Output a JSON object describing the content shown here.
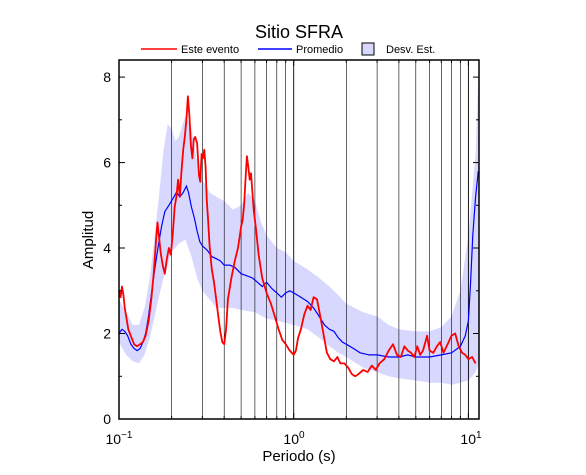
{
  "chart_data": {
    "type": "line",
    "title": "Sitio SFRA",
    "xlabel": "Periodo (s)",
    "ylabel": "Amplitud",
    "xscale": "log",
    "xlim": [
      0.1,
      11.5
    ],
    "ylim": [
      0,
      8.4
    ],
    "grid": "vertical log grid lines",
    "legend_placement": "top",
    "x_ticks": [
      {
        "value": 0.1,
        "base": "10",
        "exp": "−1"
      },
      {
        "value": 1,
        "label": "10",
        "exp": "0"
      },
      {
        "value": 10,
        "label": "10",
        "exp": "1"
      }
    ],
    "y_ticks": [
      "0",
      "2",
      "4",
      "6",
      "8"
    ],
    "legend": [
      {
        "label": "Este evento",
        "kind": "line",
        "color": "#ff0000"
      },
      {
        "label": "Promedio",
        "kind": "line",
        "color": "#0000ff"
      },
      {
        "label": "Desv. Est.",
        "kind": "box",
        "color": "#d8d8ff"
      }
    ],
    "series": [
      {
        "name": "Este evento",
        "color": "#ff0000",
        "points": [
          [
            0.1,
            3.0
          ],
          [
            0.102,
            2.85
          ],
          [
            0.104,
            3.1
          ],
          [
            0.106,
            2.9
          ],
          [
            0.108,
            2.6
          ],
          [
            0.113,
            2.1
          ],
          [
            0.118,
            1.9
          ],
          [
            0.122,
            1.75
          ],
          [
            0.127,
            1.7
          ],
          [
            0.132,
            1.75
          ],
          [
            0.137,
            1.8
          ],
          [
            0.142,
            1.95
          ],
          [
            0.148,
            2.3
          ],
          [
            0.153,
            2.8
          ],
          [
            0.158,
            3.4
          ],
          [
            0.163,
            4.2
          ],
          [
            0.166,
            4.6
          ],
          [
            0.17,
            4.2
          ],
          [
            0.173,
            3.9
          ],
          [
            0.178,
            3.6
          ],
          [
            0.183,
            3.4
          ],
          [
            0.188,
            3.75
          ],
          [
            0.193,
            4.0
          ],
          [
            0.198,
            3.85
          ],
          [
            0.203,
            4.3
          ],
          [
            0.208,
            4.95
          ],
          [
            0.213,
            5.2
          ],
          [
            0.218,
            5.6
          ],
          [
            0.223,
            5.2
          ],
          [
            0.228,
            5.8
          ],
          [
            0.233,
            6.3
          ],
          [
            0.238,
            6.6
          ],
          [
            0.243,
            7.0
          ],
          [
            0.248,
            7.55
          ],
          [
            0.253,
            7.1
          ],
          [
            0.258,
            6.4
          ],
          [
            0.263,
            6.1
          ],
          [
            0.268,
            6.55
          ],
          [
            0.273,
            6.6
          ],
          [
            0.28,
            6.45
          ],
          [
            0.287,
            5.7
          ],
          [
            0.292,
            5.55
          ],
          [
            0.297,
            6.2
          ],
          [
            0.302,
            6.1
          ],
          [
            0.308,
            6.3
          ],
          [
            0.313,
            5.9
          ],
          [
            0.318,
            5.1
          ],
          [
            0.323,
            4.7
          ],
          [
            0.33,
            4.05
          ],
          [
            0.34,
            3.5
          ],
          [
            0.35,
            3.2
          ],
          [
            0.36,
            2.8
          ],
          [
            0.37,
            2.4
          ],
          [
            0.38,
            2.05
          ],
          [
            0.39,
            1.8
          ],
          [
            0.4,
            1.75
          ],
          [
            0.41,
            2.1
          ],
          [
            0.42,
            2.8
          ],
          [
            0.44,
            3.3
          ],
          [
            0.46,
            3.7
          ],
          [
            0.48,
            4.0
          ],
          [
            0.5,
            4.5
          ],
          [
            0.51,
            4.65
          ],
          [
            0.52,
            5.0
          ],
          [
            0.53,
            5.6
          ],
          [
            0.54,
            6.15
          ],
          [
            0.55,
            5.9
          ],
          [
            0.56,
            5.6
          ],
          [
            0.57,
            5.75
          ],
          [
            0.59,
            4.9
          ],
          [
            0.61,
            4.4
          ],
          [
            0.63,
            3.85
          ],
          [
            0.66,
            3.3
          ],
          [
            0.7,
            2.95
          ],
          [
            0.74,
            2.7
          ],
          [
            0.78,
            2.4
          ],
          [
            0.82,
            2.1
          ],
          [
            0.86,
            1.85
          ],
          [
            0.9,
            1.75
          ],
          [
            0.95,
            1.6
          ],
          [
            1.0,
            1.5
          ],
          [
            1.03,
            1.6
          ],
          [
            1.06,
            1.9
          ],
          [
            1.1,
            2.1
          ],
          [
            1.15,
            2.45
          ],
          [
            1.2,
            2.65
          ],
          [
            1.25,
            2.55
          ],
          [
            1.3,
            2.85
          ],
          [
            1.36,
            2.8
          ],
          [
            1.42,
            2.4
          ],
          [
            1.48,
            2.0
          ],
          [
            1.55,
            1.55
          ],
          [
            1.62,
            1.4
          ],
          [
            1.7,
            1.35
          ],
          [
            1.78,
            1.45
          ],
          [
            1.85,
            1.3
          ],
          [
            1.95,
            1.3
          ],
          [
            2.05,
            1.2
          ],
          [
            2.15,
            1.05
          ],
          [
            2.25,
            1.0
          ],
          [
            2.35,
            1.05
          ],
          [
            2.5,
            1.15
          ],
          [
            2.65,
            1.1
          ],
          [
            2.8,
            1.25
          ],
          [
            2.95,
            1.15
          ],
          [
            3.1,
            1.3
          ],
          [
            3.3,
            1.4
          ],
          [
            3.5,
            1.6
          ],
          [
            3.7,
            1.75
          ],
          [
            3.9,
            1.5
          ],
          [
            4.1,
            1.45
          ],
          [
            4.3,
            1.7
          ],
          [
            4.5,
            1.6
          ],
          [
            4.7,
            1.55
          ],
          [
            4.9,
            1.45
          ],
          [
            5.1,
            1.7
          ],
          [
            5.3,
            1.5
          ],
          [
            5.5,
            1.6
          ],
          [
            5.8,
            1.95
          ],
          [
            6.0,
            1.6
          ],
          [
            6.3,
            1.55
          ],
          [
            6.6,
            1.7
          ],
          [
            6.9,
            1.8
          ],
          [
            7.2,
            1.55
          ],
          [
            7.6,
            1.75
          ],
          [
            8.0,
            1.95
          ],
          [
            8.4,
            2.0
          ],
          [
            8.8,
            1.7
          ],
          [
            9.2,
            1.55
          ],
          [
            9.6,
            1.5
          ],
          [
            10.0,
            1.4
          ],
          [
            10.5,
            1.45
          ],
          [
            11.0,
            1.3
          ]
        ]
      },
      {
        "name": "Promedio",
        "color": "#0000ff",
        "points": [
          [
            0.1,
            2.0
          ],
          [
            0.104,
            2.1
          ],
          [
            0.108,
            2.05
          ],
          [
            0.112,
            1.95
          ],
          [
            0.117,
            1.75
          ],
          [
            0.122,
            1.65
          ],
          [
            0.127,
            1.6
          ],
          [
            0.132,
            1.65
          ],
          [
            0.137,
            1.8
          ],
          [
            0.142,
            2.0
          ],
          [
            0.147,
            2.35
          ],
          [
            0.153,
            2.9
          ],
          [
            0.16,
            3.5
          ],
          [
            0.167,
            4.0
          ],
          [
            0.175,
            4.5
          ],
          [
            0.183,
            4.85
          ],
          [
            0.193,
            5.0
          ],
          [
            0.203,
            5.15
          ],
          [
            0.213,
            5.3
          ],
          [
            0.223,
            5.2
          ],
          [
            0.233,
            5.3
          ],
          [
            0.243,
            5.45
          ],
          [
            0.25,
            5.3
          ],
          [
            0.26,
            4.95
          ],
          [
            0.27,
            4.7
          ],
          [
            0.28,
            4.4
          ],
          [
            0.29,
            4.15
          ],
          [
            0.3,
            4.05
          ],
          [
            0.32,
            3.95
          ],
          [
            0.34,
            3.8
          ],
          [
            0.36,
            3.75
          ],
          [
            0.38,
            3.7
          ],
          [
            0.4,
            3.6
          ],
          [
            0.43,
            3.6
          ],
          [
            0.46,
            3.55
          ],
          [
            0.5,
            3.4
          ],
          [
            0.54,
            3.35
          ],
          [
            0.58,
            3.3
          ],
          [
            0.62,
            3.2
          ],
          [
            0.66,
            3.1
          ],
          [
            0.7,
            3.2
          ],
          [
            0.75,
            3.05
          ],
          [
            0.8,
            2.95
          ],
          [
            0.85,
            2.85
          ],
          [
            0.9,
            2.95
          ],
          [
            0.95,
            3.0
          ],
          [
            1.0,
            2.95
          ],
          [
            1.1,
            2.85
          ],
          [
            1.2,
            2.75
          ],
          [
            1.3,
            2.6
          ],
          [
            1.4,
            2.4
          ],
          [
            1.5,
            2.2
          ],
          [
            1.6,
            2.1
          ],
          [
            1.7,
            2.05
          ],
          [
            1.8,
            1.9
          ],
          [
            1.9,
            1.8
          ],
          [
            2.0,
            1.75
          ],
          [
            2.2,
            1.65
          ],
          [
            2.4,
            1.55
          ],
          [
            2.7,
            1.5
          ],
          [
            3.0,
            1.5
          ],
          [
            3.5,
            1.45
          ],
          [
            4.0,
            1.45
          ],
          [
            4.5,
            1.5
          ],
          [
            5.0,
            1.45
          ],
          [
            6.0,
            1.45
          ],
          [
            7.0,
            1.5
          ],
          [
            8.0,
            1.55
          ],
          [
            9.0,
            1.7
          ],
          [
            9.6,
            1.95
          ],
          [
            10.0,
            2.3
          ],
          [
            10.3,
            3.2
          ],
          [
            10.6,
            4.3
          ],
          [
            11.0,
            5.2
          ],
          [
            11.4,
            5.8
          ]
        ]
      },
      {
        "name": "Desv. Est.",
        "color": "#d8d8ff",
        "points_upper": [
          [
            0.1,
            2.8
          ],
          [
            0.11,
            2.5
          ],
          [
            0.12,
            2.2
          ],
          [
            0.13,
            2.2
          ],
          [
            0.14,
            2.6
          ],
          [
            0.15,
            3.3
          ],
          [
            0.16,
            4.3
          ],
          [
            0.17,
            5.3
          ],
          [
            0.18,
            6.3
          ],
          [
            0.19,
            6.9
          ],
          [
            0.2,
            6.8
          ],
          [
            0.21,
            6.5
          ],
          [
            0.22,
            6.6
          ],
          [
            0.24,
            7.1
          ],
          [
            0.26,
            6.8
          ],
          [
            0.28,
            6.0
          ],
          [
            0.3,
            5.6
          ],
          [
            0.33,
            5.3
          ],
          [
            0.36,
            5.2
          ],
          [
            0.4,
            5.1
          ],
          [
            0.45,
            4.9
          ],
          [
            0.5,
            5.0
          ],
          [
            0.55,
            5.3
          ],
          [
            0.6,
            5.1
          ],
          [
            0.65,
            4.6
          ],
          [
            0.7,
            4.3
          ],
          [
            0.8,
            4.0
          ],
          [
            0.9,
            3.9
          ],
          [
            1.0,
            3.7
          ],
          [
            1.2,
            3.5
          ],
          [
            1.4,
            3.3
          ],
          [
            1.6,
            3.1
          ],
          [
            1.8,
            2.9
          ],
          [
            2.0,
            2.7
          ],
          [
            2.5,
            2.5
          ],
          [
            3.0,
            2.4
          ],
          [
            3.5,
            2.2
          ],
          [
            4.0,
            2.1
          ],
          [
            5.0,
            2.05
          ],
          [
            6.0,
            2.05
          ],
          [
            7.0,
            2.15
          ],
          [
            8.0,
            2.4
          ],
          [
            9.0,
            3.0
          ],
          [
            10.0,
            4.3
          ],
          [
            11.0,
            6.2
          ],
          [
            11.5,
            8.4
          ]
        ],
        "points_lower": [
          [
            0.1,
            1.8
          ],
          [
            0.11,
            1.5
          ],
          [
            0.12,
            1.35
          ],
          [
            0.13,
            1.3
          ],
          [
            0.14,
            1.5
          ],
          [
            0.15,
            1.9
          ],
          [
            0.16,
            2.4
          ],
          [
            0.17,
            2.9
          ],
          [
            0.18,
            3.3
          ],
          [
            0.19,
            3.6
          ],
          [
            0.2,
            3.9
          ],
          [
            0.22,
            4.1
          ],
          [
            0.24,
            4.2
          ],
          [
            0.26,
            3.8
          ],
          [
            0.28,
            3.3
          ],
          [
            0.3,
            3.0
          ],
          [
            0.33,
            2.8
          ],
          [
            0.36,
            2.6
          ],
          [
            0.4,
            2.6
          ],
          [
            0.45,
            2.6
          ],
          [
            0.5,
            2.55
          ],
          [
            0.6,
            2.5
          ],
          [
            0.7,
            2.35
          ],
          [
            0.8,
            2.3
          ],
          [
            0.9,
            2.25
          ],
          [
            1.0,
            2.2
          ],
          [
            1.2,
            2.1
          ],
          [
            1.4,
            1.9
          ],
          [
            1.6,
            1.7
          ],
          [
            1.8,
            1.55
          ],
          [
            2.0,
            1.45
          ],
          [
            2.5,
            1.2
          ],
          [
            3.0,
            1.1
          ],
          [
            3.5,
            1.0
          ],
          [
            4.0,
            0.95
          ],
          [
            5.0,
            0.9
          ],
          [
            6.0,
            0.85
          ],
          [
            7.0,
            0.85
          ],
          [
            8.0,
            0.8
          ],
          [
            9.0,
            0.85
          ],
          [
            10.0,
            0.9
          ],
          [
            11.0,
            1.1
          ],
          [
            11.5,
            1.3
          ]
        ]
      }
    ]
  }
}
